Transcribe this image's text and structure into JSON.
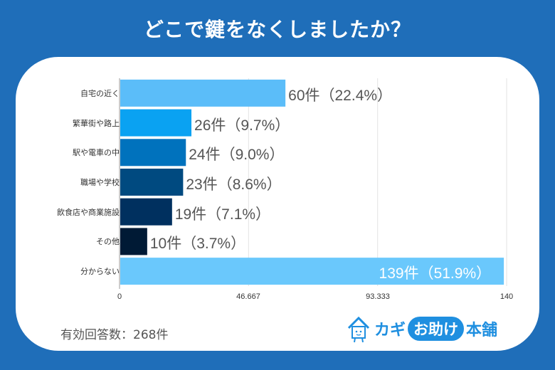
{
  "title": "どこで鍵をなくしましたか？",
  "total_label": "有効回答数：268件",
  "logo": {
    "text_left": "カギ",
    "text_bubble": "お助け",
    "text_right": "本舗"
  },
  "colors": {
    "background": "#1f6eb9",
    "card": "#ffffff",
    "logo": "#1f8fe0"
  },
  "chart_data": {
    "type": "bar",
    "orientation": "horizontal",
    "categories": [
      "自宅の近く",
      "繁華街や路上",
      "駅や電車の中",
      "職場や学校",
      "飲食店や商業施設",
      "その他",
      "分からない"
    ],
    "values": [
      60,
      26,
      24,
      23,
      19,
      10,
      139
    ],
    "data_labels": [
      "60件（22.4%）",
      "26件（9.7%）",
      "24件（9.0%）",
      "23件（8.6%）",
      "19件（7.1%）",
      "10件（3.7%）",
      "139件（51.9%）"
    ],
    "bar_colors": [
      "#5bbdf9",
      "#0aa2f2",
      "#0072bd",
      "#004a80",
      "#00305f",
      "#001a35",
      "#6ac8fc"
    ],
    "xlim": [
      0,
      140
    ],
    "xticks": [
      "0",
      "46.667",
      "93.333",
      "140"
    ],
    "grid": true
  }
}
